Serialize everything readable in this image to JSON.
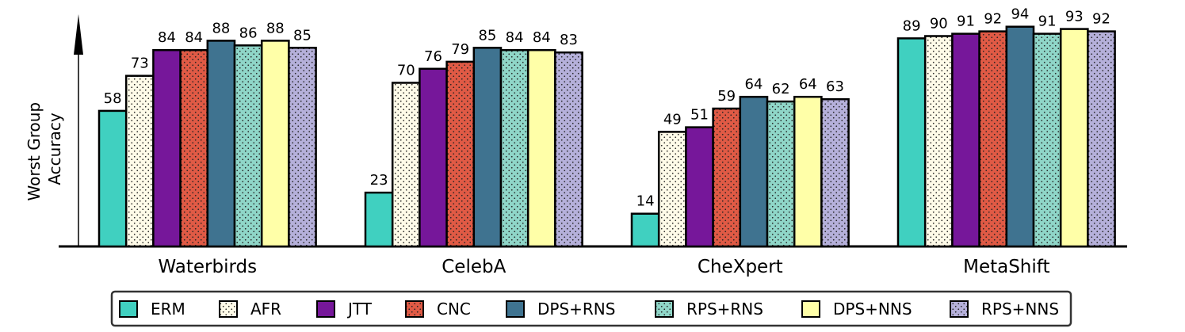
{
  "chart_data": {
    "type": "bar",
    "ylabel": "Worst Group\nAccuracy",
    "ylim": [
      0,
      100
    ],
    "grid": false,
    "legend_position": "bottom",
    "categories": [
      "Waterbirds",
      "CelebA",
      "CheXpert",
      "MetaShift"
    ],
    "series": [
      {
        "name": "ERM",
        "values": [
          58,
          23,
          14,
          89
        ],
        "color": "#40d0c0",
        "pattern": "none"
      },
      {
        "name": "AFR",
        "values": [
          73,
          70,
          49,
          90
        ],
        "color": "#fffbe8",
        "pattern": "dots"
      },
      {
        "name": "JTT",
        "values": [
          84,
          76,
          51,
          91
        ],
        "color": "#76179a",
        "pattern": "none"
      },
      {
        "name": "CNC",
        "values": [
          84,
          79,
          59,
          92
        ],
        "color": "#e05a45",
        "pattern": "dots"
      },
      {
        "name": "DPS+RNS",
        "values": [
          88,
          85,
          64,
          94
        ],
        "color": "#3f7390",
        "pattern": "none"
      },
      {
        "name": "RPS+RNS",
        "values": [
          86,
          84,
          62,
          91
        ],
        "color": "#8fd6c8",
        "pattern": "dots"
      },
      {
        "name": "DPS+NNS",
        "values": [
          88,
          84,
          64,
          93
        ],
        "color": "#ffffa8",
        "pattern": "none"
      },
      {
        "name": "RPS+NNS",
        "values": [
          85,
          83,
          63,
          92
        ],
        "color": "#b5b0da",
        "pattern": "dots"
      }
    ]
  }
}
